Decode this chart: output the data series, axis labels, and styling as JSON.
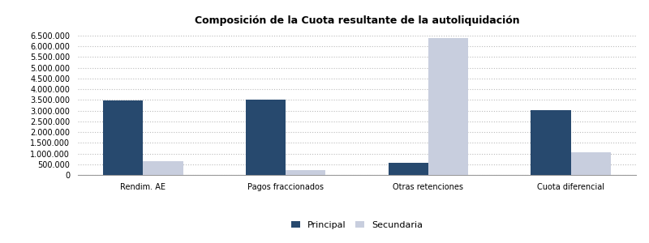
{
  "title": "Composición de la Cuota resultante de la autoliquidación",
  "categories": [
    "Rendim. AE",
    "Pagos fraccionados",
    "Otras retenciones",
    "Cuota diferencial"
  ],
  "principal": [
    3480000,
    3530000,
    570000,
    3010000
  ],
  "secundaria": [
    650000,
    240000,
    6400000,
    1060000
  ],
  "bar_color_principal": "#27496E",
  "bar_color_secundaria": "#C8CEDE",
  "ylim": [
    0,
    6800000
  ],
  "yticks": [
    0,
    500000,
    1000000,
    1500000,
    2000000,
    2500000,
    3000000,
    3500000,
    4000000,
    4500000,
    5000000,
    5500000,
    6000000,
    6500000
  ],
  "legend_labels": [
    "Principal",
    "Secundaria"
  ],
  "background_color": "#FFFFFF",
  "plot_bg_color": "#FFFFFF",
  "grid_color": "#BBBBBB",
  "title_fontsize": 9,
  "tick_fontsize": 7,
  "legend_fontsize": 8,
  "bar_width": 0.28
}
